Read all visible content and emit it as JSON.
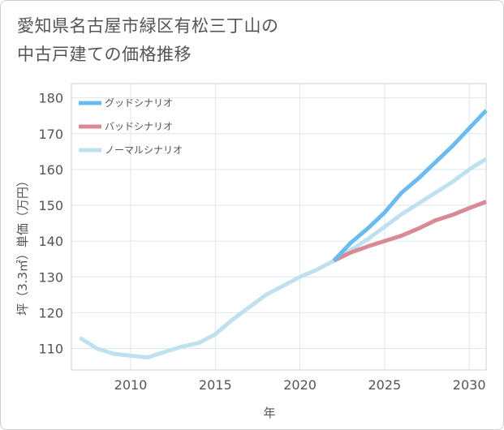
{
  "title_lines": [
    "愛知県名古屋市緑区有松三丁山の",
    "中古戸建ての価格推移"
  ],
  "chart_data": {
    "type": "line",
    "title": "愛知県名古屋市緑区有松三丁山の中古戸建ての価格推移",
    "xlabel": "年",
    "ylabel": "坪（3.3㎡）単価（万円）",
    "xlim": [
      2006.5,
      2031
    ],
    "ylim": [
      104,
      184
    ],
    "x_ticks": [
      2010,
      2015,
      2020,
      2025,
      2030
    ],
    "y_ticks": [
      110,
      120,
      130,
      140,
      150,
      160,
      170,
      180
    ],
    "grid": true,
    "legend_position": "top-left",
    "series": [
      {
        "name": "グッドシナリオ",
        "color": "#6cbbef",
        "x": [
          2022,
          2023,
          2024,
          2025,
          2026,
          2027,
          2028,
          2029,
          2030,
          2031
        ],
        "values": [
          134.5,
          139.5,
          143.5,
          148.0,
          153.5,
          157.5,
          162.0,
          166.5,
          171.5,
          176.5
        ]
      },
      {
        "name": "バッドシナリオ",
        "color": "#d98a94",
        "x": [
          2022,
          2023,
          2024,
          2025,
          2026,
          2027,
          2028,
          2029,
          2030,
          2031
        ],
        "values": [
          134.5,
          136.8,
          138.5,
          140.0,
          141.5,
          143.5,
          145.8,
          147.3,
          149.2,
          151.0
        ]
      },
      {
        "name": "ノーマルシナリオ",
        "color": "#bfe0ee",
        "x": [
          2007,
          2008,
          2009,
          2010,
          2011,
          2012,
          2013,
          2014,
          2015,
          2016,
          2017,
          2018,
          2019,
          2020,
          2021,
          2022,
          2023,
          2024,
          2025,
          2026,
          2027,
          2028,
          2029,
          2030,
          2031
        ],
        "values": [
          113.0,
          110.0,
          108.5,
          108.0,
          107.5,
          109.0,
          110.5,
          111.5,
          114.0,
          118.0,
          121.5,
          125.0,
          127.5,
          130.0,
          132.0,
          134.5,
          137.5,
          140.5,
          144.0,
          147.5,
          150.5,
          153.5,
          156.5,
          160.0,
          163.0
        ]
      }
    ]
  }
}
